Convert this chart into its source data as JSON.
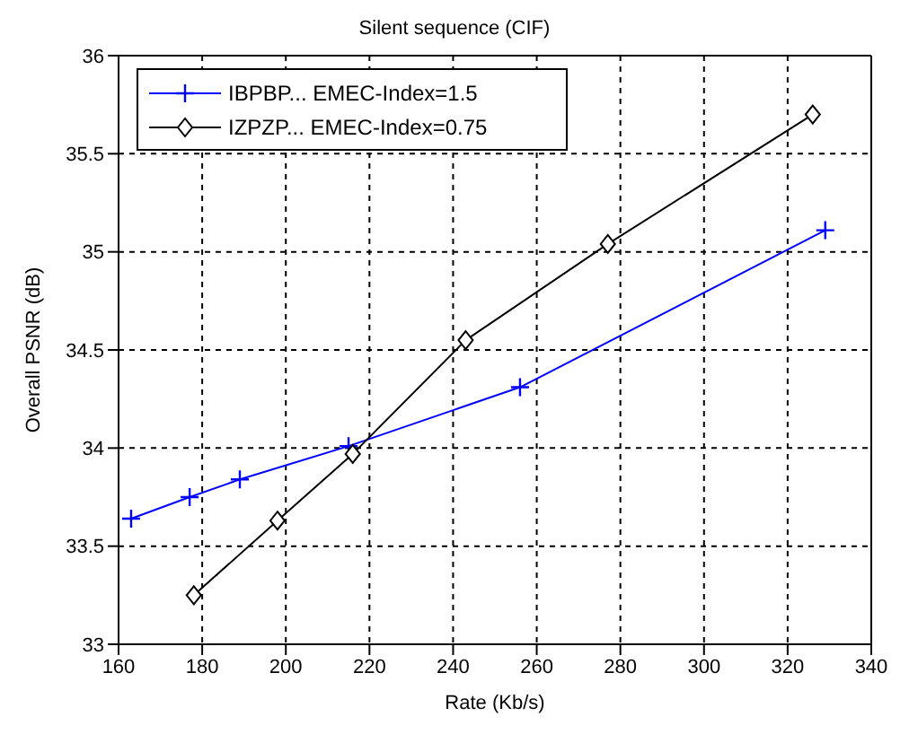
{
  "chart_data": {
    "type": "line",
    "title": "Silent sequence (CIF)",
    "xlabel": "Rate (Kb/s)",
    "ylabel": "Overall PSNR (dB)",
    "xlim": [
      160,
      340
    ],
    "xticks": [
      160,
      180,
      200,
      220,
      240,
      260,
      280,
      300,
      320,
      340
    ],
    "ylim": [
      33,
      36
    ],
    "yticks": [
      33,
      33.5,
      34,
      34.5,
      35,
      35.5,
      36
    ],
    "grid": true,
    "legend": "top left",
    "line_style": "solid",
    "series": [
      {
        "name": "IBPBP... EMEC-Index=1.5",
        "color": "#0000ff",
        "marker": "cross",
        "x": [
          163,
          177,
          189,
          215,
          256,
          329
        ],
        "values": [
          33.64,
          33.75,
          33.84,
          34.01,
          34.31,
          35.11
        ]
      },
      {
        "name": "IZPZP... EMEC-Index=0.75",
        "color": "#000000",
        "marker": "diamond",
        "x": [
          178,
          198,
          216,
          243,
          277,
          326
        ],
        "values": [
          33.25,
          33.63,
          33.97,
          34.55,
          35.04,
          35.7
        ]
      }
    ]
  }
}
